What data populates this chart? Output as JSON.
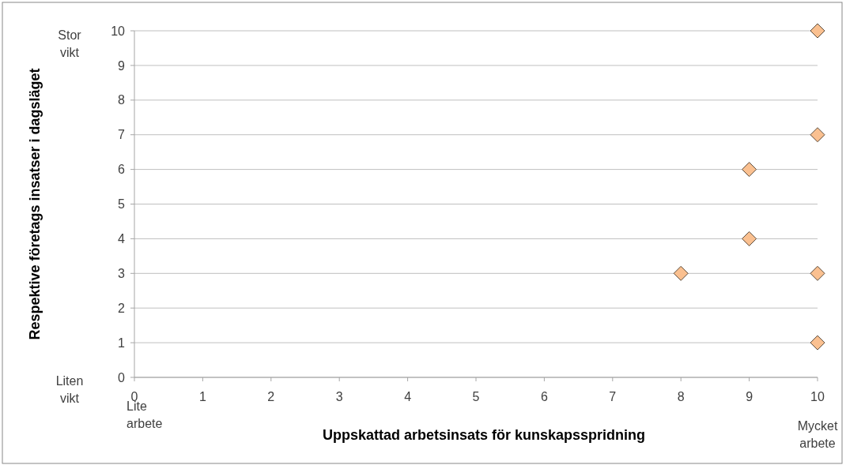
{
  "chart_data": {
    "type": "scatter",
    "xlabel": "Uppskattad arbetsinsats för kunskapsspridning",
    "ylabel": "Respektive företags insatser i dagsläget",
    "x": [
      10,
      10,
      9,
      9,
      8,
      10,
      10
    ],
    "values": [
      10,
      7,
      6,
      4,
      3,
      3,
      1
    ],
    "color": "#fac090",
    "marker": "diamond",
    "grid": "y",
    "xlim": [
      0,
      10
    ],
    "xticks": [
      0,
      1,
      2,
      3,
      4,
      5,
      6,
      7,
      8,
      9,
      10
    ],
    "ylim": [
      0,
      10
    ],
    "yticks": [
      0,
      1,
      2,
      3,
      4,
      5,
      6,
      7,
      8,
      9,
      10
    ],
    "annotations": [
      "Stor vikt",
      "Liten vikt",
      "Lite arbete",
      "Mycket arbete"
    ]
  }
}
